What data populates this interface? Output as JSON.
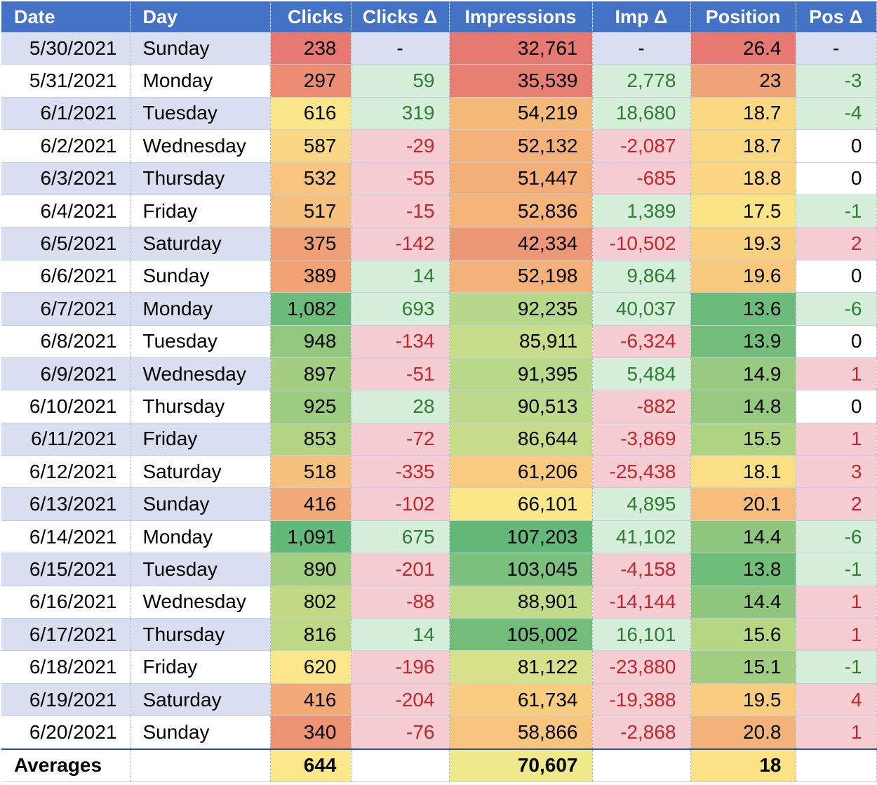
{
  "headers": [
    "Date",
    "Day",
    "Clicks",
    "Clicks Δ",
    "Impressions",
    "Imp Δ",
    "Position",
    "Pos Δ"
  ],
  "rows": [
    {
      "date": "5/30/2021",
      "day": "Sunday",
      "clicks": "238",
      "cd": "-",
      "imp": "32,761",
      "id": "-",
      "pos": "26.4",
      "pd": "-",
      "cc": "#e67a72",
      "ic": "#e67a72",
      "pc": "#e67a72"
    },
    {
      "date": "5/31/2021",
      "day": "Monday",
      "clicks": "297",
      "cd": "59",
      "imp": "35,539",
      "id": "2,778",
      "pos": "23",
      "pd": "-3",
      "cc": "#ec8d73",
      "ic": "#e87f73",
      "pc": "#f0a377"
    },
    {
      "date": "6/1/2021",
      "day": "Tuesday",
      "clicks": "616",
      "cd": "319",
      "imp": "54,219",
      "id": "18,680",
      "pos": "18.7",
      "pd": "-4",
      "cc": "#fce68a",
      "ic": "#f5b97a",
      "pc": "#fbd983"
    },
    {
      "date": "6/2/2021",
      "day": "Wednesday",
      "clicks": "587",
      "cd": "-29",
      "imp": "52,132",
      "id": "-2,087",
      "pos": "18.7",
      "pd": "0",
      "cc": "#f9d784",
      "ic": "#f4b17a",
      "pc": "#fbd983"
    },
    {
      "date": "6/3/2021",
      "day": "Thursday",
      "clicks": "532",
      "cd": "-55",
      "imp": "51,447",
      "id": "-685",
      "pos": "18.8",
      "pd": "0",
      "cc": "#f6c47e",
      "ic": "#f3ae79",
      "pc": "#fbd683"
    },
    {
      "date": "6/4/2021",
      "day": "Friday",
      "clicks": "517",
      "cd": "-15",
      "imp": "52,836",
      "id": "1,389",
      "pos": "17.5",
      "pd": "-1",
      "cc": "#f6c07e",
      "ic": "#f4b47a",
      "pc": "#fbe486"
    },
    {
      "date": "6/5/2021",
      "day": "Saturday",
      "clicks": "375",
      "cd": "-142",
      "imp": "42,334",
      "id": "-10,502",
      "pos": "19.3",
      "pd": "2",
      "cc": "#f0a075",
      "ic": "#ec9775",
      "pc": "#f9cf80"
    },
    {
      "date": "6/6/2021",
      "day": "Sunday",
      "clicks": "389",
      "cd": "14",
      "imp": "52,198",
      "id": "9,864",
      "pos": "19.6",
      "pd": "0",
      "cc": "#f1a376",
      "ic": "#f4b27a",
      "pc": "#f8c97f"
    },
    {
      "date": "6/7/2021",
      "day": "Monday",
      "clicks": "1,082",
      "cd": "693",
      "imp": "92,235",
      "id": "40,037",
      "pos": "13.6",
      "pd": "-6",
      "cc": "#6bbb7a",
      "ic": "#b6d88a",
      "pc": "#6bbb7a"
    },
    {
      "date": "6/8/2021",
      "day": "Tuesday",
      "clicks": "948",
      "cd": "-134",
      "imp": "85,911",
      "id": "-6,324",
      "pos": "13.9",
      "pd": "0",
      "cc": "#93c97f",
      "ic": "#c8dd89",
      "pc": "#74be7b"
    },
    {
      "date": "6/9/2021",
      "day": "Wednesday",
      "clicks": "897",
      "cd": "-51",
      "imp": "91,395",
      "id": "5,484",
      "pos": "14.9",
      "pd": "1",
      "cc": "#a4cf81",
      "ic": "#b9d98a",
      "pc": "#98ca80"
    },
    {
      "date": "6/10/2021",
      "day": "Thursday",
      "clicks": "925",
      "cd": "28",
      "imp": "90,513",
      "id": "-882",
      "pos": "14.8",
      "pd": "0",
      "cc": "#9bcc80",
      "ic": "#bcda8a",
      "pc": "#95c980"
    },
    {
      "date": "6/11/2021",
      "day": "Friday",
      "clicks": "853",
      "cd": "-72",
      "imp": "86,644",
      "id": "-3,869",
      "pos": "15.5",
      "pd": "1",
      "cc": "#b3d583",
      "ic": "#c6dc89",
      "pc": "#aed383"
    },
    {
      "date": "6/12/2021",
      "day": "Saturday",
      "clicks": "518",
      "cd": "-335",
      "imp": "61,206",
      "id": "-25,438",
      "pos": "18.1",
      "pd": "3",
      "cc": "#f6c07e",
      "ic": "#f8cb80",
      "pc": "#fbdf85"
    },
    {
      "date": "6/13/2021",
      "day": "Sunday",
      "clicks": "416",
      "cd": "-102",
      "imp": "66,101",
      "id": "4,895",
      "pos": "20.1",
      "pd": "2",
      "cc": "#f2aa77",
      "ic": "#fbe688",
      "pc": "#f6bd7c"
    },
    {
      "date": "6/14/2021",
      "day": "Monday",
      "clicks": "1,091",
      "cd": "675",
      "imp": "107,203",
      "id": "41,102",
      "pos": "14.4",
      "pd": "-6",
      "cc": "#63b978",
      "ic": "#63b978",
      "pc": "#8ec67e"
    },
    {
      "date": "6/15/2021",
      "day": "Tuesday",
      "clicks": "890",
      "cd": "-201",
      "imp": "103,045",
      "id": "-4,158",
      "pos": "13.8",
      "pd": "-1",
      "cc": "#a6d081",
      "ic": "#7bc07c",
      "pc": "#70bd7a"
    },
    {
      "date": "6/16/2021",
      "day": "Wednesday",
      "clicks": "802",
      "cd": "-88",
      "imp": "88,901",
      "id": "-14,144",
      "pos": "14.4",
      "pd": "1",
      "cc": "#c3da85",
      "ic": "#c0db8a",
      "pc": "#8ec67e"
    },
    {
      "date": "6/17/2021",
      "day": "Thursday",
      "clicks": "816",
      "cd": "14",
      "imp": "105,002",
      "id": "16,101",
      "pos": "15.6",
      "pd": "1",
      "cc": "#bed984",
      "ic": "#72bd7a",
      "pc": "#b6d683"
    },
    {
      "date": "6/18/2021",
      "day": "Friday",
      "clicks": "620",
      "cd": "-196",
      "imp": "81,122",
      "id": "-23,880",
      "pos": "15.1",
      "pd": "-1",
      "cc": "#fce78a",
      "ic": "#d6e18a",
      "pc": "#a1cd81"
    },
    {
      "date": "6/19/2021",
      "day": "Saturday",
      "clicks": "416",
      "cd": "-204",
      "imp": "61,734",
      "id": "-19,388",
      "pos": "19.5",
      "pd": "4",
      "cc": "#f2aa77",
      "ic": "#f8cd80",
      "pc": "#f9cc80"
    },
    {
      "date": "6/20/2021",
      "day": "Sunday",
      "clicks": "340",
      "cd": "-76",
      "imp": "58,866",
      "id": "-2,868",
      "pos": "20.8",
      "pd": "1",
      "cc": "#ed9374",
      "ic": "#f7c47e",
      "pc": "#f3b27a"
    }
  ],
  "averages": {
    "label": "Averages",
    "clicks": "644",
    "imp": "70,607",
    "pos": "18",
    "cc": "#fbe88a",
    "ic": "#eeea8c",
    "pc": "#fbe286"
  }
}
